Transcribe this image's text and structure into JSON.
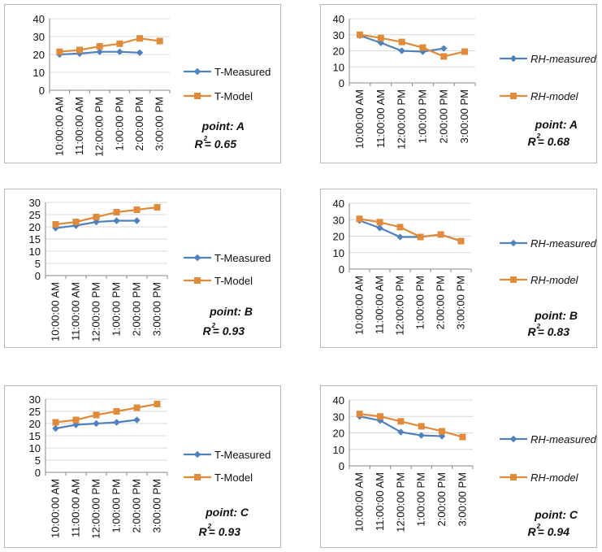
{
  "chart_data": [
    {
      "type": "line",
      "categories": [
        "10:00:00 AM",
        "11:00:00 AM",
        "12:00:00 PM",
        "1:00:00 PM",
        "2:00:00 PM",
        "3:00:00 PM"
      ],
      "ylim": [
        0,
        40
      ],
      "yticks": [
        0,
        10,
        20,
        30,
        40
      ],
      "series": [
        {
          "name": "T-Measured",
          "values": [
            20,
            20.5,
            21.5,
            21.5,
            21,
            null
          ],
          "color": "#4f81bd",
          "marker": "diamond"
        },
        {
          "name": "T-Model",
          "values": [
            21.5,
            22.5,
            24.5,
            26,
            29,
            27.5
          ],
          "color": "#e08a3c",
          "marker": "square"
        }
      ],
      "legend_italic": false,
      "annotation": {
        "point": "point: A",
        "r2_prefix": "R",
        "r2_sup": "2",
        "r2_value": "= 0.65"
      }
    },
    {
      "type": "line",
      "categories": [
        "10:00:00 AM",
        "11:00:00 AM",
        "12:00:00 PM",
        "1:00:00 PM",
        "2:00:00 PM",
        "3:00:00 PM"
      ],
      "ylim": [
        0,
        40
      ],
      "yticks": [
        0,
        10,
        20,
        30,
        40
      ],
      "series": [
        {
          "name": "RH-measured",
          "values": [
            29.5,
            25,
            20,
            19.5,
            21.5,
            null
          ],
          "color": "#4f81bd",
          "marker": "diamond"
        },
        {
          "name": "RH-model",
          "values": [
            30,
            28,
            25.5,
            22,
            16.5,
            19.5
          ],
          "color": "#e08a3c",
          "marker": "square"
        }
      ],
      "legend_italic": true,
      "annotation": {
        "point": "point: A",
        "r2_prefix": "R",
        "r2_sup": "2",
        "r2_value": "= 0.68"
      }
    },
    {
      "type": "line",
      "categories": [
        "10:00:00 AM",
        "11:00:00 AM",
        "12:00:00 PM",
        "1:00:00 PM",
        "2:00:00 PM",
        "3:00:00 PM"
      ],
      "ylim": [
        0,
        30
      ],
      "yticks": [
        0,
        5,
        10,
        15,
        20,
        25,
        30
      ],
      "series": [
        {
          "name": "T-Measured",
          "values": [
            19.5,
            20.5,
            22,
            22.5,
            22.5,
            null
          ],
          "color": "#4f81bd",
          "marker": "diamond"
        },
        {
          "name": "T-Model",
          "values": [
            21,
            22,
            24,
            26,
            27,
            28
          ],
          "color": "#e08a3c",
          "marker": "square"
        }
      ],
      "legend_italic": false,
      "annotation": {
        "point": "point: B",
        "r2_prefix": "R",
        "r2_sup": "2",
        "r2_value": "= 0.93"
      }
    },
    {
      "type": "line",
      "categories": [
        "10:00:00 AM",
        "11:00:00 AM",
        "12:00:00 PM",
        "1:00:00 PM",
        "2:00:00 PM",
        "3:00:00 PM"
      ],
      "ylim": [
        0,
        40
      ],
      "yticks": [
        0,
        10,
        20,
        30,
        40
      ],
      "series": [
        {
          "name": "RH-measured",
          "values": [
            29.5,
            25,
            19.5,
            19.5,
            21,
            17
          ],
          "color": "#4f81bd",
          "marker": "diamond"
        },
        {
          "name": "RH-model",
          "values": [
            30.5,
            28.5,
            25.5,
            19.5,
            21,
            17
          ],
          "color": "#e08a3c",
          "marker": "square"
        }
      ],
      "legend_italic": true,
      "annotation": {
        "point": "point: B",
        "r2_prefix": "R",
        "r2_sup": "2",
        "r2_value": "= 0.83"
      }
    },
    {
      "type": "line",
      "categories": [
        "10:00:00 AM",
        "11:00:00 AM",
        "12:00:00 PM",
        "1:00:00 PM",
        "2:00:00 PM",
        "3:00:00 PM"
      ],
      "ylim": [
        0,
        30
      ],
      "yticks": [
        0,
        5,
        10,
        15,
        20,
        25,
        30
      ],
      "series": [
        {
          "name": "T-Measured",
          "values": [
            18,
            19.5,
            20,
            20.5,
            21.5,
            null
          ],
          "color": "#4f81bd",
          "marker": "diamond"
        },
        {
          "name": "T-Model",
          "values": [
            20.5,
            21.5,
            23.5,
            25,
            26.5,
            28
          ],
          "color": "#e08a3c",
          "marker": "square"
        }
      ],
      "legend_italic": false,
      "annotation": {
        "point": "point: C",
        "r2_prefix": "R",
        "r2_sup": "2",
        "r2_value": "= 0.93"
      }
    },
    {
      "type": "line",
      "categories": [
        "10:00:00 AM",
        "11:00:00 AM",
        "12:00:00 PM",
        "1:00:00 PM",
        "2:00:00 PM",
        "3:00:00 PM"
      ],
      "ylim": [
        0,
        40
      ],
      "yticks": [
        0,
        10,
        20,
        30,
        40
      ],
      "series": [
        {
          "name": "RH-measured",
          "values": [
            30,
            27.5,
            20.5,
            18.5,
            18,
            null
          ],
          "color": "#4f81bd",
          "marker": "diamond"
        },
        {
          "name": "RH-model",
          "values": [
            31.5,
            30,
            27,
            24,
            21,
            17.5
          ],
          "color": "#e08a3c",
          "marker": "square"
        }
      ],
      "legend_italic": true,
      "annotation": {
        "point": "point: C",
        "r2_prefix": "R",
        "r2_sup": "2",
        "r2_value": "= 0.94"
      }
    }
  ]
}
